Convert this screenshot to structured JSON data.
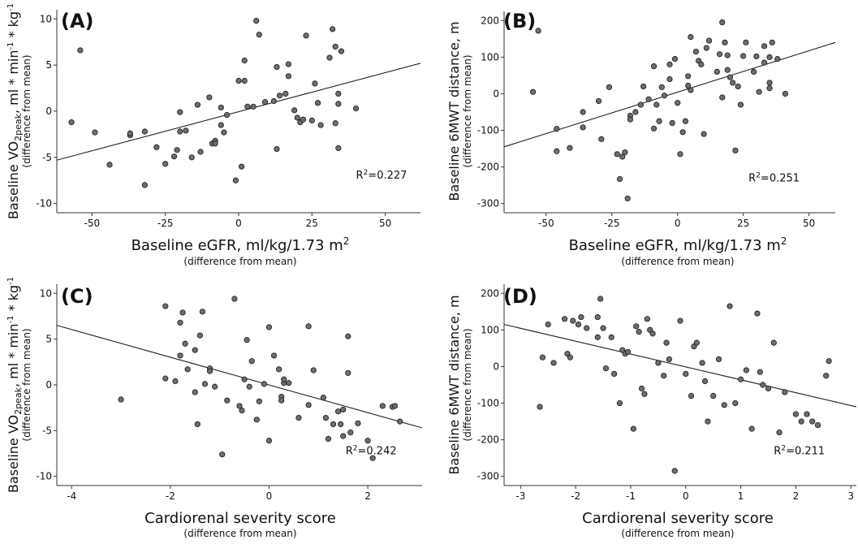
{
  "chart_data": [
    {
      "type": "scatter",
      "panel_label": "(A)",
      "ylabel_main": "Baseline VO",
      "ylabel_sub_script": "2peak",
      "ylabel_rest": ", ml * min",
      "ylabel_sup1": "-1",
      "ylabel_mid": " * kg",
      "ylabel_sup2": "-1",
      "ylabel_note": "(difference from mean)",
      "xlabel_main": "Baseline eGFR, ml/kg/1.73 m",
      "xlabel_sup": "2",
      "xlabel_note": "(difference from mean)",
      "r2_label": "R",
      "r2_sup": "2",
      "r2_value": "=0.227",
      "r2_pos": [
        40,
        -7.3
      ],
      "xlim": [
        -62,
        62
      ],
      "ylim": [
        -11,
        11
      ],
      "xticks": [
        -50,
        -25,
        0,
        25,
        50
      ],
      "yticks": [
        -10,
        -5,
        0,
        5,
        10
      ],
      "xtick_labels": [
        "-50",
        "-25",
        "0",
        "25",
        "50"
      ],
      "ytick_labels": [
        "-10",
        "-5",
        "0",
        "5",
        "10"
      ],
      "fit": [
        [
          -62,
          -5.3
        ],
        [
          62,
          5.2
        ]
      ],
      "points": [
        [
          -54,
          6.6
        ],
        [
          -57,
          -1.2
        ],
        [
          -49,
          -2.3
        ],
        [
          -44,
          -5.8
        ],
        [
          -37,
          -2.6
        ],
        [
          -37,
          -2.4
        ],
        [
          -32,
          -2.2
        ],
        [
          -32,
          -8
        ],
        [
          -28,
          -3.9
        ],
        [
          -25,
          -5.7
        ],
        [
          -22,
          -4.9
        ],
        [
          -21,
          -4.2
        ],
        [
          -20,
          -2.2
        ],
        [
          -20,
          -0.1
        ],
        [
          -18,
          -2.1
        ],
        [
          -16,
          -5
        ],
        [
          -14,
          0.7
        ],
        [
          -13,
          -4.4
        ],
        [
          -10,
          1.5
        ],
        [
          -9,
          -3.5
        ],
        [
          -8,
          -3.2
        ],
        [
          -8,
          -3.5
        ],
        [
          -6,
          -1.5
        ],
        [
          -6,
          0.4
        ],
        [
          -5,
          -2.3
        ],
        [
          -4,
          -0.4
        ],
        [
          -1,
          -7.5
        ],
        [
          0,
          3.3
        ],
        [
          1,
          -6
        ],
        [
          2,
          3.3
        ],
        [
          2,
          5.5
        ],
        [
          3,
          0.5
        ],
        [
          5,
          0.5
        ],
        [
          6,
          9.8
        ],
        [
          7,
          8.3
        ],
        [
          9,
          1
        ],
        [
          12,
          1.1
        ],
        [
          13,
          -4.1
        ],
        [
          13,
          4.8
        ],
        [
          14,
          1.7
        ],
        [
          16,
          1.9
        ],
        [
          17,
          3.8
        ],
        [
          17,
          5.1
        ],
        [
          19,
          0.1
        ],
        [
          20,
          -0.7
        ],
        [
          21,
          -1.2
        ],
        [
          22,
          -0.9
        ],
        [
          23,
          8.2
        ],
        [
          25,
          -1
        ],
        [
          26,
          3
        ],
        [
          27,
          0.9
        ],
        [
          28,
          -1.5
        ],
        [
          31,
          5.8
        ],
        [
          32,
          8.9
        ],
        [
          33,
          -1.3
        ],
        [
          33,
          7
        ],
        [
          34,
          1.9
        ],
        [
          34,
          0.8
        ],
        [
          34,
          -4
        ],
        [
          35,
          6.5
        ],
        [
          40,
          0.3
        ]
      ]
    },
    {
      "type": "scatter",
      "panel_label": "(B)",
      "ylabel_main": "Baseline 6MWT distance, m",
      "ylabel_note": "(difference from mean)",
      "xlabel_main": "Baseline eGFR, ml/kg/1.73 m",
      "xlabel_sup": "2",
      "xlabel_note": "(difference from mean)",
      "r2_label": "R",
      "r2_sup": "2",
      "r2_value": "=0.251",
      "r2_pos": [
        27,
        -240
      ],
      "xlim": [
        -66,
        60
      ],
      "ylim": [
        -325,
        225
      ],
      "xticks": [
        -50,
        -25,
        0,
        25,
        50
      ],
      "yticks": [
        -300,
        -200,
        -100,
        0,
        100,
        200
      ],
      "xtick_labels": [
        "-50",
        "-25",
        "0",
        "25",
        "50"
      ],
      "ytick_labels": [
        "-300",
        "-200",
        "-100",
        "0",
        "100",
        "200"
      ],
      "fit": [
        [
          -66,
          -145
        ],
        [
          60,
          140
        ]
      ],
      "points": [
        [
          -53,
          172
        ],
        [
          -55,
          5
        ],
        [
          -46,
          -96
        ],
        [
          -46,
          -157
        ],
        [
          -41,
          -148
        ],
        [
          -36,
          -50
        ],
        [
          -36,
          -92
        ],
        [
          -30,
          -20
        ],
        [
          -29,
          -124
        ],
        [
          -26,
          18
        ],
        [
          -23,
          -165
        ],
        [
          -22,
          -233
        ],
        [
          -21,
          -172
        ],
        [
          -20,
          -160
        ],
        [
          -19,
          -286
        ],
        [
          -18,
          -60
        ],
        [
          -18,
          -70
        ],
        [
          -16,
          -50
        ],
        [
          -14,
          -30
        ],
        [
          -13,
          20
        ],
        [
          -11,
          -15
        ],
        [
          -9,
          75
        ],
        [
          -9,
          -95
        ],
        [
          -8,
          -30
        ],
        [
          -7,
          -75
        ],
        [
          -6,
          18
        ],
        [
          -5,
          -5
        ],
        [
          -3,
          40
        ],
        [
          -3,
          80
        ],
        [
          -2,
          -80
        ],
        [
          -1,
          95
        ],
        [
          0,
          -25
        ],
        [
          1,
          -165
        ],
        [
          2,
          -105
        ],
        [
          3,
          -75
        ],
        [
          4,
          48
        ],
        [
          4,
          22
        ],
        [
          5,
          10
        ],
        [
          5,
          155
        ],
        [
          7,
          115
        ],
        [
          8,
          90
        ],
        [
          9,
          80
        ],
        [
          10,
          -110
        ],
        [
          11,
          125
        ],
        [
          12,
          145
        ],
        [
          15,
          60
        ],
        [
          16,
          108
        ],
        [
          17,
          -10
        ],
        [
          17,
          195
        ],
        [
          18,
          140
        ],
        [
          19,
          105
        ],
        [
          19,
          65
        ],
        [
          20,
          45
        ],
        [
          21,
          30
        ],
        [
          22,
          -155
        ],
        [
          23,
          20
        ],
        [
          24,
          -30
        ],
        [
          25,
          103
        ],
        [
          26,
          140
        ],
        [
          29,
          60
        ],
        [
          30,
          102
        ],
        [
          31,
          5
        ],
        [
          33,
          85
        ],
        [
          33,
          130
        ],
        [
          35,
          100
        ],
        [
          35,
          30
        ],
        [
          35,
          15
        ],
        [
          36,
          140
        ],
        [
          38,
          95
        ],
        [
          41,
          0
        ]
      ]
    },
    {
      "type": "scatter",
      "panel_label": "(C)",
      "ylabel_main": "Baseline VO",
      "ylabel_sub_script": "2peak",
      "ylabel_rest": ", ml * min",
      "ylabel_sup1": "-1",
      "ylabel_mid": " * kg",
      "ylabel_sup2": "-1",
      "ylabel_note": "(difference from mean)",
      "xlabel_main": "Cardiorenal severity score",
      "xlabel_note": "(difference from mean)",
      "r2_label": "R",
      "r2_sup": "2",
      "r2_value": "=0.242",
      "r2_pos": [
        1.55,
        -7.6
      ],
      "xlim": [
        -4.3,
        3.1
      ],
      "ylim": [
        -11,
        11
      ],
      "xticks": [
        -4,
        -2,
        0,
        2
      ],
      "yticks": [
        -10,
        -5,
        0,
        5,
        10
      ],
      "xtick_labels": [
        "-4",
        "-2",
        "0",
        "2"
      ],
      "ytick_labels": [
        "-10",
        "-5",
        "0",
        "5",
        "10"
      ],
      "fit": [
        [
          -4.3,
          6.5
        ],
        [
          3.1,
          -4.7
        ]
      ],
      "points": [
        [
          -3,
          -1.6
        ],
        [
          -2.1,
          8.6
        ],
        [
          -2.1,
          0.7
        ],
        [
          -1.9,
          0.4
        ],
        [
          -1.8,
          6.8
        ],
        [
          -1.8,
          3.2
        ],
        [
          -1.75,
          7.9
        ],
        [
          -1.7,
          4.5
        ],
        [
          -1.65,
          1.7
        ],
        [
          -1.5,
          3.8
        ],
        [
          -1.5,
          -0.8
        ],
        [
          -1.45,
          -4.3
        ],
        [
          -1.4,
          5.4
        ],
        [
          -1.35,
          8
        ],
        [
          -1.3,
          0.1
        ],
        [
          -1.2,
          1.8
        ],
        [
          -1.2,
          1.5
        ],
        [
          -1.1,
          -0.2
        ],
        [
          -0.95,
          -7.6
        ],
        [
          -0.85,
          -1.7
        ],
        [
          -0.7,
          9.4
        ],
        [
          -0.6,
          -2.3
        ],
        [
          -0.55,
          -2.8
        ],
        [
          -0.5,
          0.6
        ],
        [
          -0.45,
          4.9
        ],
        [
          -0.4,
          -0.2
        ],
        [
          -0.35,
          2.6
        ],
        [
          -0.25,
          -3.8
        ],
        [
          -0.2,
          -1.8
        ],
        [
          -0.1,
          0.1
        ],
        [
          0,
          6.3
        ],
        [
          0,
          -6.1
        ],
        [
          0.1,
          3.2
        ],
        [
          0.2,
          1.7
        ],
        [
          0.25,
          -1.3
        ],
        [
          0.25,
          -1.7
        ],
        [
          0.3,
          0.2
        ],
        [
          0.3,
          0.6
        ],
        [
          0.4,
          0.2
        ],
        [
          0.6,
          -3.6
        ],
        [
          0.8,
          6.4
        ],
        [
          0.8,
          -2.2
        ],
        [
          0.9,
          1.6
        ],
        [
          1.1,
          -1.4
        ],
        [
          1.15,
          -3.6
        ],
        [
          1.2,
          -5.9
        ],
        [
          1.3,
          -4.3
        ],
        [
          1.4,
          -2.9
        ],
        [
          1.45,
          -4.3
        ],
        [
          1.5,
          -2.7
        ],
        [
          1.5,
          -5.6
        ],
        [
          1.6,
          5.3
        ],
        [
          1.6,
          1.3
        ],
        [
          1.65,
          -5.2
        ],
        [
          1.8,
          -4.2
        ],
        [
          2,
          -6.1
        ],
        [
          2.1,
          -8
        ],
        [
          2.3,
          -2.3
        ],
        [
          2.5,
          -2.4
        ],
        [
          2.55,
          -2.3
        ],
        [
          2.65,
          -4
        ]
      ]
    },
    {
      "type": "scatter",
      "panel_label": "(D)",
      "ylabel_main": "Baseline 6MWT distance, m",
      "ylabel_note": "(difference from mean)",
      "xlabel_main": "Cardiorenal severity score",
      "xlabel_note": "(difference from mean)",
      "r2_label": "R",
      "r2_sup": "2",
      "r2_value": "=0.211",
      "r2_pos": [
        1.6,
        -240
      ],
      "xlim": [
        -3.3,
        3.1
      ],
      "ylim": [
        -325,
        225
      ],
      "xticks": [
        -3,
        -2,
        -1,
        0,
        1,
        2,
        3
      ],
      "yticks": [
        -300,
        -200,
        -100,
        0,
        100,
        200
      ],
      "xtick_labels": [
        "-3",
        "-2",
        "-1",
        "0",
        "1",
        "2",
        "3"
      ],
      "ytick_labels": [
        "-300",
        "-200",
        "-100",
        "0",
        "100",
        "200"
      ],
      "fit": [
        [
          -3.3,
          115
        ],
        [
          3.1,
          -110
        ]
      ],
      "points": [
        [
          -2.65,
          -110
        ],
        [
          -2.6,
          25
        ],
        [
          -2.5,
          115
        ],
        [
          -2.4,
          10
        ],
        [
          -2.2,
          130
        ],
        [
          -2.15,
          35
        ],
        [
          -2.1,
          25
        ],
        [
          -2.05,
          125
        ],
        [
          -1.95,
          115
        ],
        [
          -1.9,
          135
        ],
        [
          -1.8,
          105
        ],
        [
          -1.6,
          135
        ],
        [
          -1.6,
          80
        ],
        [
          -1.55,
          185
        ],
        [
          -1.5,
          105
        ],
        [
          -1.45,
          -5
        ],
        [
          -1.35,
          80
        ],
        [
          -1.3,
          -20
        ],
        [
          -1.2,
          -100
        ],
        [
          -1.15,
          45
        ],
        [
          -1.1,
          35
        ],
        [
          -1.05,
          40
        ],
        [
          -0.95,
          -170
        ],
        [
          -0.9,
          110
        ],
        [
          -0.85,
          95
        ],
        [
          -0.8,
          -60
        ],
        [
          -0.75,
          -75
        ],
        [
          -0.7,
          130
        ],
        [
          -0.65,
          100
        ],
        [
          -0.6,
          90
        ],
        [
          -0.5,
          10
        ],
        [
          -0.4,
          -25
        ],
        [
          -0.35,
          65
        ],
        [
          -0.3,
          20
        ],
        [
          -0.2,
          -285
        ],
        [
          -0.1,
          125
        ],
        [
          0,
          -20
        ],
        [
          0.1,
          -80
        ],
        [
          0.15,
          55
        ],
        [
          0.2,
          65
        ],
        [
          0.3,
          10
        ],
        [
          0.35,
          -40
        ],
        [
          0.4,
          -150
        ],
        [
          0.5,
          -80
        ],
        [
          0.6,
          20
        ],
        [
          0.7,
          -105
        ],
        [
          0.8,
          165
        ],
        [
          0.9,
          -100
        ],
        [
          1,
          -35
        ],
        [
          1.1,
          -10
        ],
        [
          1.2,
          -170
        ],
        [
          1.3,
          145
        ],
        [
          1.35,
          -15
        ],
        [
          1.4,
          -50
        ],
        [
          1.5,
          -60
        ],
        [
          1.6,
          65
        ],
        [
          1.7,
          -180
        ],
        [
          1.8,
          -70
        ],
        [
          2,
          -130
        ],
        [
          2.1,
          -150
        ],
        [
          2.2,
          -130
        ],
        [
          2.3,
          -150
        ],
        [
          2.4,
          -160
        ],
        [
          2.55,
          -25
        ],
        [
          2.6,
          15
        ]
      ]
    }
  ]
}
